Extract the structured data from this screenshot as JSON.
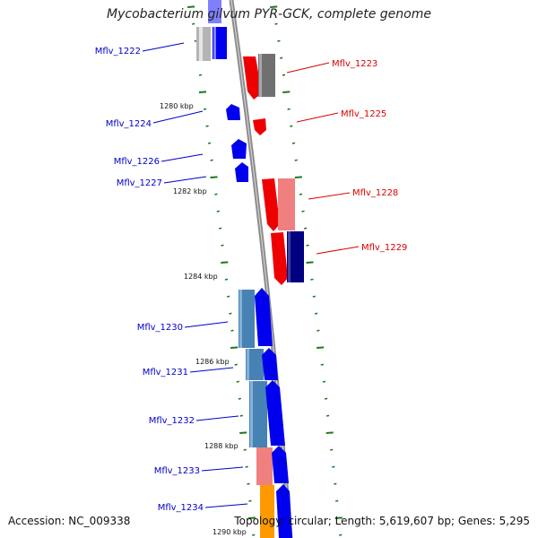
{
  "title": "Mycobacterium gilvum PYR-GCK, complete genome",
  "accession": "Accession: NC_009338",
  "topology": "Topology: circular; Length: 5,619,607 bp; Genes: 5,295",
  "colors": {
    "backbone": "#8c8c8c",
    "tick": "#1a7a1a",
    "forward_strand": "#0000ee",
    "reverse_strand": "#ee0000",
    "left_label": "#0000cc",
    "right_label": "#dd0000"
  },
  "scale_labels": [
    "1280 kbp",
    "1282 kbp",
    "1284 kbp",
    "1286 kbp",
    "1288 kbp",
    "1290 kbp"
  ],
  "genes": [
    {
      "name": "Mflv_1222",
      "side": "left"
    },
    {
      "name": "Mflv_1223",
      "side": "right"
    },
    {
      "name": "Mflv_1224",
      "side": "left"
    },
    {
      "name": "Mflv_1225",
      "side": "right"
    },
    {
      "name": "Mflv_1226",
      "side": "left"
    },
    {
      "name": "Mflv_1227",
      "side": "left"
    },
    {
      "name": "Mflv_1228",
      "side": "right"
    },
    {
      "name": "Mflv_1229",
      "side": "right"
    },
    {
      "name": "Mflv_1230",
      "side": "left"
    },
    {
      "name": "Mflv_1231",
      "side": "left"
    },
    {
      "name": "Mflv_1232",
      "side": "left"
    },
    {
      "name": "Mflv_1233",
      "side": "left"
    },
    {
      "name": "Mflv_1234",
      "side": "left"
    }
  ]
}
